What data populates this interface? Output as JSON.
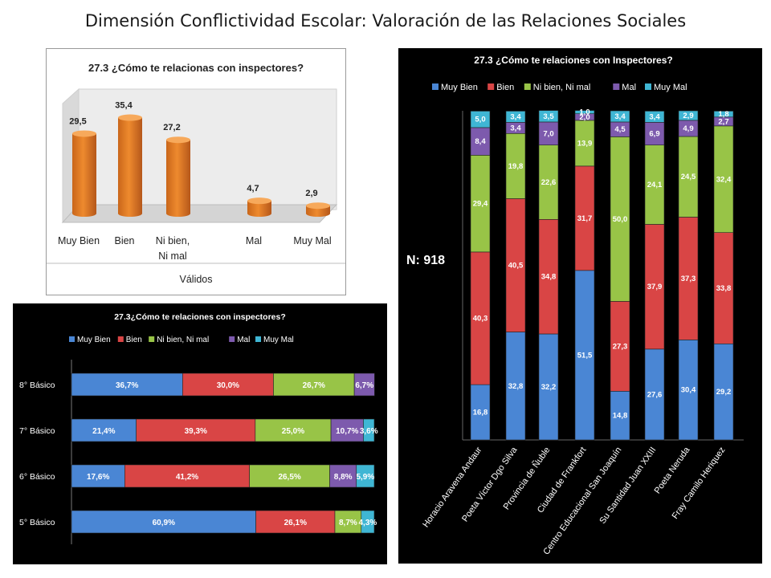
{
  "page": {
    "title": "Dimensión Conflictividad Escolar: Valoración de las Relaciones Sociales",
    "n_label": "N: 918"
  },
  "colors": {
    "Muy Bien": "#4a86d4",
    "Bien": "#d94545",
    "Ni bien, Ni mal": "#98c447",
    "Mal": "#7d5aad",
    "Muy Mal": "#3fb6d4",
    "cylinder": "#ee8a2e"
  },
  "chart_data": [
    {
      "type": "bar",
      "title": "27.3 ¿Cómo te relacionas con inspectores?",
      "categories": [
        "Muy Bien",
        "Bien",
        "Ni bien, Ni mal",
        "Mal",
        "Muy Mal"
      ],
      "category_lines": [
        [
          "Muy Bien"
        ],
        [
          "Bien"
        ],
        [
          "Ni bien,",
          "Ni mal"
        ],
        [
          "Mal"
        ],
        [
          "Muy Mal"
        ]
      ],
      "values": [
        29.5,
        35.4,
        27.2,
        4.7,
        2.9
      ],
      "value_labels": [
        "29,5",
        "35,4",
        "27,2",
        "4,7",
        "2,9"
      ],
      "group_label": "Válidos",
      "ylim": [
        0,
        40
      ],
      "grid": false,
      "style": "3d-cylinder"
    },
    {
      "type": "bar",
      "orientation": "horizontal",
      "stacked": true,
      "title": "27.3¿Cómo te relaciones con inspectores?",
      "legend_position": "top",
      "categories": [
        "8° Básico",
        "7° Básico",
        "6° Básico",
        "5° Básico"
      ],
      "series": [
        {
          "name": "Muy Bien",
          "values": [
            36.7,
            21.4,
            17.6,
            60.9
          ],
          "labels": [
            "36,7%",
            "21,4%",
            "17,6%",
            "60,9%"
          ]
        },
        {
          "name": "Bien",
          "values": [
            30.0,
            39.3,
            41.2,
            26.1
          ],
          "labels": [
            "30,0%",
            "39,3%",
            "41,2%",
            "26,1%"
          ]
        },
        {
          "name": "Ni bien, Ni mal",
          "values": [
            26.7,
            25.0,
            26.5,
            8.7
          ],
          "labels": [
            "26,7%",
            "25,0%",
            "26,5%",
            "8,7%"
          ]
        },
        {
          "name": "Mal",
          "values": [
            6.7,
            10.7,
            8.8,
            0
          ],
          "labels": [
            "6,7%",
            "10,7%",
            "8,8%",
            ""
          ]
        },
        {
          "name": "Muy Mal",
          "values": [
            0,
            3.6,
            5.9,
            4.3
          ],
          "labels": [
            "",
            "3,6%",
            "5,9%",
            "4,3%"
          ]
        }
      ],
      "xlim": [
        0,
        100
      ]
    },
    {
      "type": "bar",
      "stacked": true,
      "title": "27.3 ¿Cómo te relaciones con  Inspectores?",
      "legend_position": "top",
      "categories": [
        "Horacio Aravena Andaur",
        "Poeta Víctor Dgo Silva",
        "Provincia de Ñuble",
        "Ciudad de Frankfort",
        "Centro Educacional San Joaquín",
        "Su Santidad Juan XXIII",
        "Poeta Neruda",
        "Fray Camilo Heriquez"
      ],
      "series": [
        {
          "name": "Muy Bien",
          "values": [
            16.8,
            32.8,
            32.2,
            51.5,
            14.8,
            27.6,
            30.4,
            29.2
          ],
          "labels": [
            "16,8",
            "32,8",
            "32,2",
            "51,5",
            "14,8",
            "27,6",
            "30,4",
            "29,2"
          ]
        },
        {
          "name": "Bien",
          "values": [
            40.3,
            40.5,
            34.8,
            31.7,
            27.3,
            37.9,
            37.3,
            33.8
          ],
          "labels": [
            "40,3",
            "40,5",
            "34,8",
            "31,7",
            "27,3",
            "37,9",
            "37,3",
            "33,8"
          ]
        },
        {
          "name": "Ni bien, Ni mal",
          "values": [
            29.4,
            19.8,
            22.6,
            13.9,
            50.0,
            24.1,
            24.5,
            32.4
          ],
          "labels": [
            "29,4",
            "19,8",
            "22,6",
            "13,9",
            "50,0",
            "24,1",
            "24,5",
            "32,4"
          ]
        },
        {
          "name": "Mal",
          "values": [
            8.4,
            3.4,
            7.0,
            2.0,
            4.5,
            6.9,
            4.9,
            2.7
          ],
          "labels": [
            "8,4",
            "3,4",
            "7,0",
            "2,0",
            "4,5",
            "6,9",
            "4,9",
            "2,7"
          ]
        },
        {
          "name": "Muy Mal",
          "values": [
            5.0,
            3.4,
            3.5,
            1.0,
            3.4,
            3.4,
            2.9,
            1.8
          ],
          "labels": [
            "5,0",
            "3,4",
            "3,5",
            "1,0",
            "3,4",
            "3,4",
            "2,9",
            "1,8"
          ]
        }
      ],
      "ylim": [
        0,
        100
      ]
    }
  ]
}
